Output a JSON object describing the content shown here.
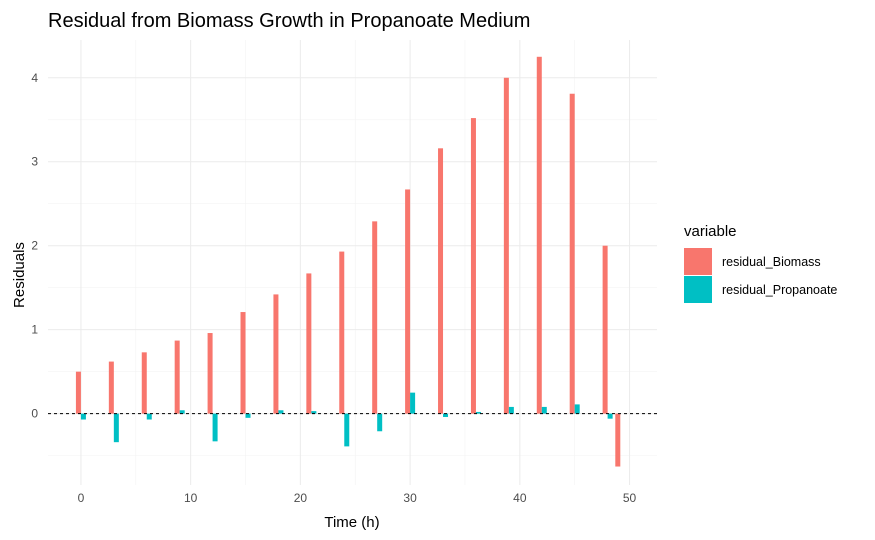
{
  "chart_data": {
    "type": "bar",
    "title": "Residual from Biomass Growth in Propanoate Medium",
    "xlabel": "Time (h)",
    "ylabel": "Residuals",
    "xlim": [
      -3,
      52.5
    ],
    "ylim": [
      -0.85,
      4.45
    ],
    "x_ticks": [
      0,
      10,
      20,
      30,
      40,
      50
    ],
    "y_ticks": [
      0,
      1,
      2,
      3,
      4
    ],
    "grid": true,
    "reference_line": {
      "y": 0,
      "style": "dashed"
    },
    "legend": {
      "title": "variable",
      "placement": "right"
    },
    "x": [
      0,
      3,
      6,
      9,
      12,
      15,
      18,
      21,
      24,
      27,
      30,
      33,
      36,
      39,
      42,
      45,
      48
    ],
    "series": [
      {
        "name": "residual_Biomass",
        "color": "#F8766D",
        "values": [
          0.5,
          0.62,
          0.73,
          0.87,
          0.96,
          1.21,
          1.42,
          1.67,
          1.93,
          2.29,
          2.67,
          3.16,
          3.52,
          4.0,
          4.25,
          3.81,
          2.0
        ]
      },
      {
        "name": "residual_Propanoate",
        "color": "#00BFC4",
        "values": [
          -0.07,
          -0.34,
          -0.07,
          0.04,
          -0.33,
          -0.05,
          0.04,
          0.03,
          -0.39,
          -0.21,
          0.25,
          -0.04,
          0.02,
          0.08,
          0.08,
          0.11,
          -0.06
        ]
      }
    ],
    "extra_bars": [
      {
        "series": "residual_Biomass",
        "x": 48.7,
        "value": -0.63
      }
    ]
  }
}
